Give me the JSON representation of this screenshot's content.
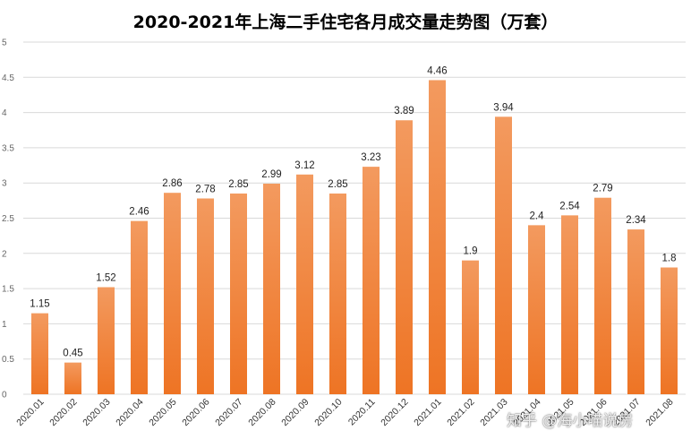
{
  "chart_data": {
    "type": "bar",
    "title": "2020-2021年上海二手住宅各月成交量走势图（万套）",
    "xlabel": "",
    "ylabel": "",
    "ylim": [
      0,
      5
    ],
    "yticks": [
      "0",
      "0.5",
      "1",
      "1.5",
      "2",
      "2.5",
      "3",
      "3.5",
      "4",
      "4.5",
      "5"
    ],
    "grid": true,
    "legend": "none",
    "categories": [
      "2020.01",
      "2020.02",
      "2020.03",
      "2020.04",
      "2020.05",
      "2020.06",
      "2020.07",
      "2020.08",
      "2020.09",
      "2020.10",
      "2020.11",
      "2020.12",
      "2021.01",
      "2021.02",
      "2021.03",
      "2021.04",
      "2021.05",
      "2021.06",
      "2021.07",
      "2021.08"
    ],
    "values": [
      1.15,
      0.45,
      1.52,
      2.46,
      2.86,
      2.78,
      2.85,
      2.99,
      3.12,
      2.85,
      3.23,
      3.89,
      4.46,
      1.9,
      3.94,
      2.4,
      2.54,
      2.79,
      2.34,
      1.8
    ],
    "data_labels": [
      "1.15",
      "0.45",
      "1.52",
      "2.46",
      "2.86",
      "2.78",
      "2.85",
      "2.99",
      "3.12",
      "2.85",
      "3.23",
      "3.89",
      "4.46",
      "1.9",
      "3.94",
      "2.4",
      "2.54",
      "2.79",
      "2.34",
      "1.8"
    ],
    "colors": {
      "bar_top": "#f39a5f",
      "bar_bottom": "#ee7424",
      "grid": "#d9d9d9"
    }
  },
  "watermark": "知乎 @海小喵说房"
}
